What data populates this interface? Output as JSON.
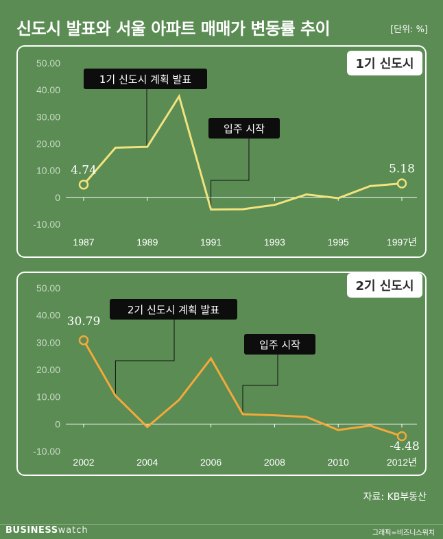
{
  "header": {
    "title": "신도시 발표와 서울 아파트 매매가 변동률 추이",
    "unit": "[단위: %]"
  },
  "footer": {
    "source": "자료: KB부동산",
    "logo_bold": "BUSINESS",
    "logo_light": "watch",
    "credit": "그래픽=비즈니스워치"
  },
  "colors": {
    "background": "#5b8c54",
    "line1": "#f1e37e",
    "line2": "#f4a93a",
    "axis_text": "#c9dcc4"
  },
  "chart_data": [
    {
      "type": "line",
      "badge": "1기 신도시",
      "x": [
        1987,
        1988,
        1989,
        1990,
        1991,
        1992,
        1993,
        1994,
        1995,
        1996,
        1997
      ],
      "xticks": [
        "1987",
        "1989",
        "1991",
        "1993",
        "1995",
        "1997년"
      ],
      "xtick_values": [
        1987,
        1989,
        1991,
        1993,
        1995,
        1997
      ],
      "yticks": [
        "50.00",
        "40.00",
        "30.00",
        "20.00",
        "10.00",
        "0",
        "-10.00"
      ],
      "ylim": [
        -10,
        50
      ],
      "grid": false,
      "series": [
        {
          "values": [
            4.74,
            18.5,
            18.8,
            37.6,
            -4.5,
            -4.4,
            -2.8,
            1.1,
            -0.3,
            4.2,
            5.18
          ]
        }
      ],
      "point_labels": [
        {
          "x": 1987,
          "y": 4.74,
          "text": "4.74"
        },
        {
          "x": 1997,
          "y": 5.18,
          "text": "5.18"
        }
      ],
      "annotations": [
        {
          "text": "1기 신도시 계획 발표",
          "x": 1989
        },
        {
          "text": "입주 시작",
          "x": 1991
        }
      ]
    },
    {
      "type": "line",
      "badge": "2기 신도시",
      "x": [
        2002,
        2003,
        2004,
        2005,
        2006,
        2007,
        2008,
        2009,
        2010,
        2011,
        2012
      ],
      "xticks": [
        "2002",
        "2004",
        "2006",
        "2008",
        "2010",
        "2012년"
      ],
      "xtick_values": [
        2002,
        2004,
        2006,
        2008,
        2010,
        2012
      ],
      "yticks": [
        "50.00",
        "40.00",
        "30.00",
        "20.00",
        "10.00",
        "0",
        "-10.00"
      ],
      "ylim": [
        -10,
        50
      ],
      "grid": false,
      "series": [
        {
          "values": [
            30.79,
            10.4,
            -1.1,
            8.9,
            24.1,
            3.6,
            3.2,
            2.6,
            -2.2,
            -0.6,
            -4.48
          ]
        }
      ],
      "point_labels": [
        {
          "x": 2002,
          "y": 30.79,
          "text": "30.79"
        },
        {
          "x": 2012,
          "y": -4.48,
          "text": "-4.48"
        }
      ],
      "annotations": [
        {
          "text": "2기 신도시 계획 발표",
          "x": 2003
        },
        {
          "text": "입주 시작",
          "x": 2007
        }
      ]
    }
  ]
}
